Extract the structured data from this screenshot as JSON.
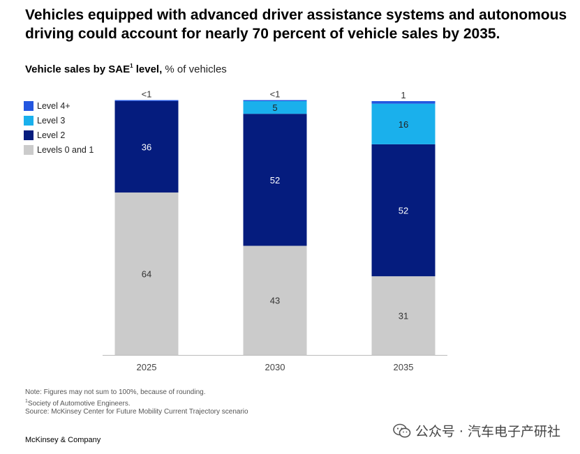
{
  "header": {
    "title": "Vehicles equipped with advanced driver assistance systems and autonomous driving could account for nearly 70 percent of vehicle sales by 2035."
  },
  "chart_data": {
    "type": "bar",
    "stacked": true,
    "title": "Vehicle sales by SAE",
    "title_superscript": "1",
    "title_suffix": "level,",
    "unit_label": "% of vehicles",
    "categories": [
      "2025",
      "2030",
      "2035"
    ],
    "series": [
      {
        "name": "Levels 0 and 1",
        "values": [
          64,
          43,
          31
        ],
        "labels": [
          "64",
          "43",
          "31"
        ],
        "color": "#cbcbcb",
        "label_color": "#333333"
      },
      {
        "name": "Level 2",
        "values": [
          36,
          52,
          52
        ],
        "labels": [
          "36",
          "52",
          "52"
        ],
        "color": "#051c7e",
        "label_color": "#ffffff"
      },
      {
        "name": "Level 3",
        "values": [
          0,
          5,
          16
        ],
        "labels": [
          "",
          "5",
          "16"
        ],
        "color": "#1ab0ec",
        "label_color": "#222222"
      },
      {
        "name": "Level 4+",
        "values": [
          0.4,
          0.4,
          1
        ],
        "labels": [
          "<1",
          "<1",
          "1"
        ],
        "color": "#2356e0",
        "label_color": "#333333"
      }
    ],
    "legend_order": [
      "Level 4+",
      "Level 3",
      "Level 2",
      "Levels 0 and 1"
    ],
    "legend_position": "top-left",
    "ylim": [
      0,
      100
    ],
    "grid": false
  },
  "notes": {
    "note": "Note: Figures may not sum to 100%, because of rounding.",
    "footnote_mark": "1",
    "footnote": "Society of Automotive Engineers.",
    "source": "Source: McKinsey Center for Future Mobility Current Trajectory scenario"
  },
  "footer": {
    "brand": "McKinsey & Company",
    "watermark": "公众号 · 汽车电子产研社",
    "watermark_icon": "wechat-icon"
  }
}
